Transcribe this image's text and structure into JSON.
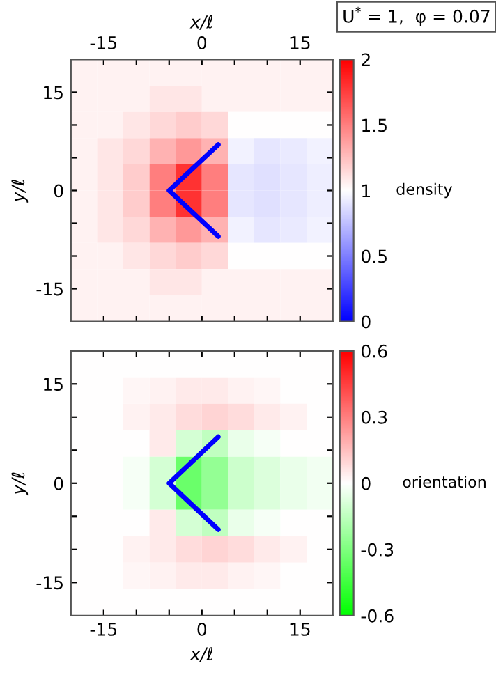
{
  "chart_data": [
    {
      "type": "heatmap",
      "xlabel": "x/ℓ",
      "ylabel": "y/ℓ",
      "clabel": "density",
      "annotations": [
        "U$^{*}$ = 1,  φ = 0.07"
      ],
      "x": [
        -18,
        -14,
        -10,
        -6,
        -2,
        2,
        6,
        10,
        14,
        18
      ],
      "y": [
        18,
        14,
        10,
        6,
        2,
        -2,
        -6,
        -10,
        -14,
        -18
      ],
      "xlim": [
        -20,
        20
      ],
      "ylim": [
        -20,
        20
      ],
      "xticks": [
        -15,
        {
          "value": -10,
          "label": null
        },
        {
          "value": -5,
          "label": null
        },
        0,
        {
          "value": 5,
          "label": null
        },
        {
          "value": 10,
          "label": null
        },
        15
      ],
      "yticks": [
        -15,
        {
          "value": -10,
          "label": null
        },
        {
          "value": -5,
          "label": null
        },
        0,
        {
          "value": 5,
          "label": null
        },
        {
          "value": 10,
          "label": null
        },
        15
      ],
      "clim": [
        0,
        2
      ],
      "cticks": [
        0,
        0.5,
        1,
        1.5,
        2
      ],
      "colors": [
        "#0000ff",
        "#ffffff",
        "#ff0000"
      ],
      "cells": [
        [
          1.05,
          1.05,
          1.05,
          1.05,
          1.05,
          1.05,
          1.05,
          1.05,
          1.05,
          1.05
        ],
        [
          1.05,
          1.05,
          1.05,
          1.1,
          1.1,
          1.05,
          1.05,
          1.05,
          1.05,
          1.05
        ],
        [
          1.05,
          1.05,
          1.1,
          1.15,
          1.2,
          1.15,
          1.0,
          1.0,
          1.0,
          1.0
        ],
        [
          1.05,
          1.1,
          1.15,
          1.3,
          1.4,
          1.3,
          0.95,
          0.9,
          0.92,
          0.95
        ],
        [
          1.05,
          1.1,
          1.2,
          1.5,
          1.8,
          1.5,
          0.9,
          0.88,
          0.9,
          0.93
        ],
        [
          1.05,
          1.1,
          1.2,
          1.5,
          1.8,
          1.5,
          0.9,
          0.88,
          0.9,
          0.93
        ],
        [
          1.05,
          1.1,
          1.15,
          1.3,
          1.4,
          1.3,
          0.95,
          0.9,
          0.92,
          0.95
        ],
        [
          1.05,
          1.05,
          1.1,
          1.15,
          1.2,
          1.15,
          1.0,
          1.0,
          1.0,
          1.0
        ],
        [
          1.05,
          1.05,
          1.05,
          1.1,
          1.1,
          1.05,
          1.05,
          1.05,
          1.05,
          1.05
        ],
        [
          1.05,
          1.05,
          1.05,
          1.05,
          1.05,
          1.05,
          1.05,
          1.05,
          1.05,
          1.05
        ]
      ]
    },
    {
      "type": "heatmap",
      "xlabel": "x/ℓ",
      "ylabel": "y/ℓ",
      "clabel": "orientation",
      "x": [
        -18,
        -14,
        -10,
        -6,
        -2,
        2,
        6,
        10,
        14,
        18
      ],
      "y": [
        18,
        14,
        10,
        6,
        2,
        -2,
        -6,
        -10,
        -14,
        -18
      ],
      "xlim": [
        -20,
        20
      ],
      "ylim": [
        -20,
        20
      ],
      "xticks": [
        -15,
        {
          "value": -10,
          "label": null
        },
        {
          "value": -5,
          "label": null
        },
        0,
        {
          "value": 5,
          "label": null
        },
        {
          "value": 10,
          "label": null
        },
        15
      ],
      "yticks": [
        -15,
        {
          "value": -10,
          "label": null
        },
        {
          "value": -5,
          "label": null
        },
        0,
        {
          "value": 5,
          "label": null
        },
        {
          "value": 10,
          "label": null
        },
        15
      ],
      "clim": [
        -0.6,
        0.6
      ],
      "cticks": [
        -0.6,
        -0.3,
        0,
        0.3,
        0.6
      ],
      "colors": [
        "#00ff00",
        "#ffffff",
        "#ff0000"
      ],
      "cells": [
        [
          0,
          0,
          0,
          0,
          0,
          0,
          0,
          0,
          0,
          0
        ],
        [
          0,
          0,
          0.02,
          0.03,
          0.05,
          0.05,
          0.03,
          0.02,
          0,
          0
        ],
        [
          0,
          0,
          0.03,
          0.05,
          0.08,
          0.1,
          0.08,
          0.05,
          0.03,
          0
        ],
        [
          0,
          0,
          0,
          0.05,
          -0.1,
          -0.15,
          -0.05,
          -0.02,
          0,
          0
        ],
        [
          0,
          0,
          -0.02,
          -0.1,
          -0.35,
          -0.25,
          -0.12,
          -0.08,
          -0.05,
          -0.03
        ],
        [
          0,
          0,
          -0.02,
          -0.1,
          -0.35,
          -0.25,
          -0.12,
          -0.08,
          -0.05,
          -0.03
        ],
        [
          0,
          0,
          0,
          0.05,
          -0.1,
          -0.15,
          -0.05,
          -0.02,
          0,
          0
        ],
        [
          0,
          0,
          0.03,
          0.05,
          0.08,
          0.1,
          0.08,
          0.05,
          0.03,
          0
        ],
        [
          0,
          0,
          0.02,
          0.03,
          0.05,
          0.05,
          0.03,
          0.02,
          0,
          0
        ],
        [
          0,
          0,
          0,
          0,
          0,
          0,
          0,
          0,
          0,
          0
        ]
      ]
    }
  ]
}
